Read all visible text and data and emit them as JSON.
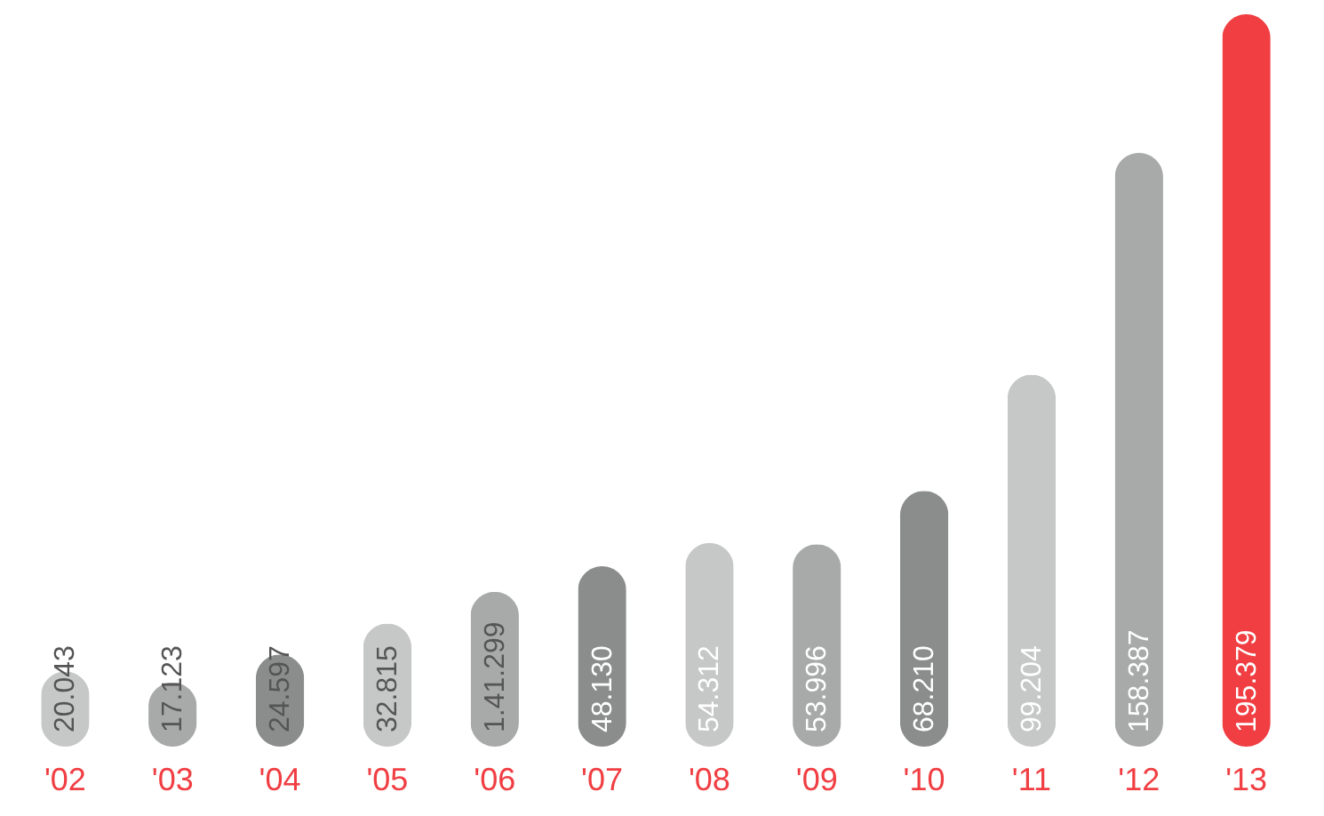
{
  "chart_data": {
    "type": "bar",
    "categories": [
      "'02",
      "'03",
      "'04",
      "'05",
      "'06",
      "'07",
      "'08",
      "'09",
      "'10",
      "'11",
      "'12",
      "'13"
    ],
    "values": [
      20043,
      17123,
      24597,
      32815,
      41299,
      48130,
      54312,
      53996,
      68210,
      99204,
      158387,
      195379
    ],
    "value_labels": [
      "20.043",
      "17.123",
      "24.597",
      "32.815",
      "1.41.299",
      "48.130",
      "54.312",
      "53.996",
      "68.210",
      "99.204",
      "158.387",
      "195.379"
    ],
    "colors": [
      "#c6c7c7",
      "#a8a9a9",
      "#8b8c8c",
      "#c6c7c7",
      "#a8a9a9",
      "#8b8c8c",
      "#c6c7c7",
      "#a8a9a9",
      "#8b8c8c",
      "#c6c7c7",
      "#a8a9a9",
      "#f03e42"
    ],
    "tick_labels": "x"
  }
}
